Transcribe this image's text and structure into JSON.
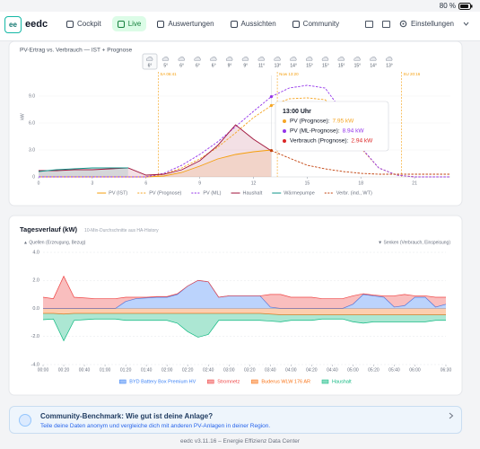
{
  "status_bar": {
    "battery": "80 %"
  },
  "header": {
    "logo_badge": "ee",
    "logo": "eedc",
    "nav": [
      {
        "label": "Cockpit"
      },
      {
        "label": "Live",
        "active": true
      },
      {
        "label": "Auswertungen"
      },
      {
        "label": "Aussichten"
      },
      {
        "label": "Community"
      }
    ],
    "settings": "Einstellungen"
  },
  "chart_data": [
    {
      "type": "line",
      "title": "PV-Ertrag vs. Verbrauch — IST + Prognose",
      "y_label": "kW",
      "weather": [
        "6°",
        "5°",
        "6°",
        "6°",
        "6°",
        "9°",
        "9°",
        "11°",
        "13°",
        "14°",
        "15°",
        "15°",
        "15°",
        "15°",
        "14°",
        "13°"
      ],
      "annotations": [
        {
          "label": "SA 06:41",
          "color": "#f59e0b"
        },
        {
          "label": "Now 13:20",
          "color": "#f59e0b"
        },
        {
          "label": "SU 20:16",
          "color": "#f59e0b"
        }
      ],
      "x": [
        0,
        1,
        2,
        3,
        4,
        5,
        6,
        7,
        8,
        9,
        10,
        11,
        12,
        13,
        14,
        15,
        16,
        17,
        18,
        19,
        20,
        21,
        22,
        23
      ],
      "xlim": [
        0,
        23
      ],
      "xticks": [
        0,
        3,
        6,
        9,
        12,
        15,
        18,
        21
      ],
      "ylim": [
        0,
        10.5
      ],
      "yticks": [
        0,
        {
          "value": 3,
          "label": "3.0"
        },
        {
          "value": 6,
          "label": "6.0"
        },
        {
          "value": 9,
          "label": "9.0"
        }
      ],
      "grid": true,
      "series": [
        {
          "name": "PV (IST)",
          "color": "#f59e0b",
          "dash": false,
          "fill": true,
          "values": [
            0,
            0,
            0,
            0,
            0,
            0,
            0,
            0.1,
            0.5,
            1.2,
            2.0,
            2.5,
            2.8,
            3.0,
            null,
            null,
            null,
            null,
            null,
            null,
            null,
            null,
            null,
            null
          ]
        },
        {
          "name": "PV (Prognose)",
          "color": "#f5a524",
          "dash": true,
          "fill": false,
          "values": [
            0,
            0,
            0,
            0,
            0,
            0,
            0,
            0.3,
            1.0,
            2.0,
            3.3,
            4.9,
            6.6,
            7.95,
            8.7,
            8.8,
            8.6,
            6.8,
            3.2,
            1.0,
            0.2,
            0,
            0,
            0
          ]
        },
        {
          "name": "PV (ML)",
          "color": "#9333ea",
          "dash": true,
          "fill": false,
          "values": [
            0,
            0,
            0,
            0,
            0,
            0,
            0,
            0.4,
            1.3,
            2.5,
            3.9,
            5.6,
            7.3,
            8.94,
            9.9,
            10.2,
            9.9,
            7.2,
            3.3,
            1.0,
            0.2,
            0,
            0,
            0
          ]
        },
        {
          "name": "Haushalt",
          "color": "#9f1239",
          "dash": false,
          "fill": true,
          "values": [
            0.7,
            0.7,
            0.8,
            0.8,
            0.9,
            1.0,
            0.2,
            0.3,
            0.8,
            1.8,
            3.5,
            5.8,
            4.2,
            2.9,
            null,
            null,
            null,
            null,
            null,
            null,
            null,
            null,
            null,
            null
          ]
        },
        {
          "name": "Wärmepumpe",
          "color": "#0d9488",
          "dash": false,
          "fill": true,
          "values": [
            0.6,
            0.8,
            0.9,
            1.0,
            1.0,
            1.0,
            null,
            null,
            null,
            null,
            null,
            null,
            null,
            null,
            null,
            null,
            null,
            null,
            null,
            null,
            null,
            null,
            null,
            null
          ]
        },
        {
          "name": "Verbr. (ind., WT)",
          "color": "#c2410c",
          "dash": true,
          "fill": false,
          "values": [
            null,
            null,
            null,
            null,
            null,
            null,
            null,
            null,
            null,
            null,
            null,
            null,
            null,
            2.94,
            2.1,
            1.3,
            0.9,
            0.6,
            0.4,
            0.3,
            0.3,
            0.3,
            0.3,
            0.3
          ]
        }
      ],
      "tooltip": {
        "title": "13:00 Uhr",
        "rows": [
          {
            "label": "PV (Prognose):",
            "value": "7.95 kW",
            "color": "#f5a524"
          },
          {
            "label": "PV (ML-Prognose):",
            "value": "8.94 kW",
            "color": "#9333ea"
          },
          {
            "label": "Verbrauch (Prognose):",
            "value": "2.94 kW",
            "color": "#dc2626"
          }
        ]
      }
    },
    {
      "type": "stacked_area",
      "title": "Tagesverlauf (kW)",
      "subtitle": "10-Min-Durchschnitte aus HA-History",
      "sources_label": "▲ Quellen (Erzeugung, Bezug)",
      "sinks_label": "▼ Senken (Verbrauch, Einspeisung)",
      "categories": [
        "00:00",
        null,
        "00:20",
        null,
        "00:40",
        null,
        "01:00",
        null,
        "01:20",
        null,
        "01:40",
        null,
        "02:00",
        null,
        "02:20",
        null,
        "02:40",
        null,
        "03:00",
        null,
        "03:20",
        null,
        "03:40",
        null,
        "04:00",
        null,
        "04:20",
        null,
        "04:40",
        null,
        "05:00",
        null,
        "05:20",
        null,
        "05:40",
        null,
        "06:00",
        null,
        null,
        "06:30"
      ],
      "ylim": [
        -4,
        4
      ],
      "yticks": [
        {
          "value": -4,
          "label": "-4.0"
        },
        {
          "value": -2,
          "label": "-2.0"
        },
        {
          "value": 0,
          "label": "0.0"
        },
        {
          "value": 2,
          "label": "2.0"
        },
        {
          "value": 4,
          "label": "4.0"
        }
      ],
      "grid": true,
      "series": [
        {
          "name": "BYD Battery Box Premium HV",
          "color": "#3b82f6",
          "values": [
            0,
            0,
            0,
            0,
            0,
            0,
            0,
            0,
            0.5,
            0.7,
            0.75,
            0.8,
            0.8,
            1.0,
            1.6,
            2.0,
            1.9,
            0.8,
            0.9,
            0.9,
            0.9,
            0.9,
            0.1,
            0,
            0,
            0,
            0,
            0,
            0,
            0,
            0.3,
            1.0,
            0.9,
            0.8,
            0.1,
            0.2,
            0.8,
            0.8,
            0.1,
            0.3
          ]
        },
        {
          "name": "Stromnetz",
          "color": "#ef4444",
          "values": [
            0.8,
            0.7,
            2.3,
            0.8,
            0.75,
            0.7,
            0.7,
            0.7,
            0.3,
            0.1,
            0.05,
            0.05,
            0.05,
            0.05,
            0,
            0,
            0,
            0,
            0,
            0,
            0,
            0,
            0.9,
            1.0,
            0.8,
            0.8,
            0.8,
            0.7,
            0.7,
            0.7,
            0.6,
            0.05,
            0.05,
            0.1,
            0.8,
            0.8,
            0.1,
            0.1,
            0.7,
            0.5
          ]
        },
        {
          "name": "Buderus WLW 176 AR",
          "color": "#f97316",
          "values": [
            -0.35,
            -0.35,
            -0.4,
            -0.35,
            -0.35,
            -0.35,
            -0.35,
            -0.35,
            -0.35,
            -0.35,
            -0.35,
            -0.35,
            -0.35,
            -0.35,
            -0.35,
            -0.35,
            -0.35,
            -0.35,
            -0.35,
            -0.35,
            -0.35,
            -0.35,
            -0.4,
            -0.45,
            -0.45,
            -0.45,
            -0.45,
            -0.45,
            -0.45,
            -0.45,
            -0.45,
            -0.45,
            -0.45,
            -0.45,
            -0.45,
            -0.45,
            -0.45,
            -0.45,
            -0.45,
            -0.45
          ]
        },
        {
          "name": "Haushalt",
          "color": "#10b981",
          "values": [
            -0.45,
            -0.4,
            -1.9,
            -0.5,
            -0.45,
            -0.4,
            -0.4,
            -0.4,
            -0.5,
            -0.5,
            -0.5,
            -0.5,
            -0.5,
            -0.7,
            -1.3,
            -1.7,
            -1.5,
            -0.5,
            -0.5,
            -0.5,
            -0.5,
            -0.5,
            -0.5,
            -0.5,
            -0.4,
            -0.4,
            -0.4,
            -0.3,
            -0.3,
            -0.3,
            -0.5,
            -0.6,
            -0.5,
            -0.5,
            -0.5,
            -0.5,
            -0.5,
            -0.5,
            -0.4,
            -0.4
          ]
        }
      ]
    }
  ],
  "community": {
    "title": "Community-Benchmark: Wie gut ist deine Anlage?",
    "text": "Teile deine Daten anonym und vergleiche dich mit anderen PV-Anlagen in deiner Region."
  },
  "footer": "eedc v3.11.16 – Energie Effizienz Data Center"
}
